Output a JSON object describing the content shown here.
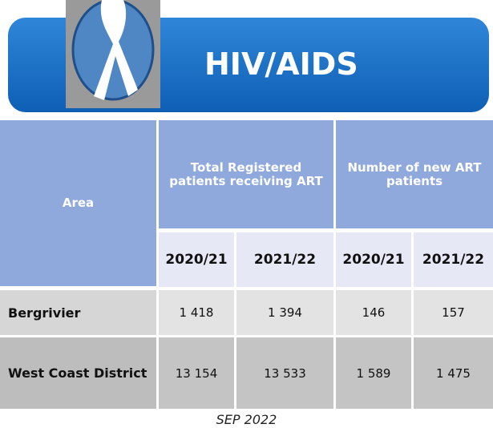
{
  "header": {
    "title": "HIV/AIDS"
  },
  "table": {
    "headers": [
      "Area",
      "Total Registered patients receiving ART",
      "Number of new ART patients"
    ],
    "subheaders": [
      "2020/21",
      "2021/22",
      "2020/21",
      "2021/22"
    ],
    "rows": [
      [
        "Bergrivier",
        "1 418",
        "1 394",
        "146",
        "157"
      ],
      [
        "West Coast District",
        "13 154",
        "13 533",
        "1 589",
        "1 475"
      ]
    ]
  },
  "footer": {
    "date": "SEP 2022"
  }
}
